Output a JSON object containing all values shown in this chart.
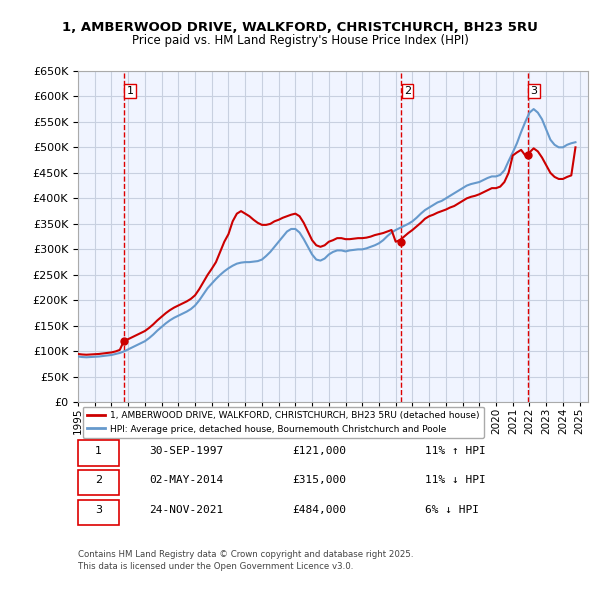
{
  "title_line1": "1, AMBERWOOD DRIVE, WALKFORD, CHRISTCHURCH, BH23 5RU",
  "title_line2": "Price paid vs. HM Land Registry's House Price Index (HPI)",
  "ylabel": "",
  "xlim_start": 1995.0,
  "xlim_end": 2025.5,
  "ylim_min": 0,
  "ylim_max": 650000,
  "ytick_step": 50000,
  "background_color": "#ffffff",
  "plot_bg_color": "#f0f4ff",
  "grid_color": "#c8d0e0",
  "red_color": "#cc0000",
  "blue_color": "#6699cc",
  "transaction_dates": [
    1997.75,
    2014.34,
    2021.9
  ],
  "transaction_prices": [
    121000,
    315000,
    484000
  ],
  "transaction_labels": [
    "1",
    "2",
    "3"
  ],
  "vline_color": "#dd0000",
  "legend_entries": [
    "1, AMBERWOOD DRIVE, WALKFORD, CHRISTCHURCH, BH23 5RU (detached house)",
    "HPI: Average price, detached house, Bournemouth Christchurch and Poole"
  ],
  "table_data": [
    [
      "1",
      "30-SEP-1997",
      "£121,000",
      "11% ↑ HPI"
    ],
    [
      "2",
      "02-MAY-2014",
      "£315,000",
      "11% ↓ HPI"
    ],
    [
      "3",
      "24-NOV-2021",
      "£484,000",
      "6% ↓ HPI"
    ]
  ],
  "footer_text": "Contains HM Land Registry data © Crown copyright and database right 2025.\nThis data is licensed under the Open Government Licence v3.0.",
  "hpi_data_x": [
    1995.0,
    1995.25,
    1995.5,
    1995.75,
    1996.0,
    1996.25,
    1996.5,
    1996.75,
    1997.0,
    1997.25,
    1997.5,
    1997.75,
    1998.0,
    1998.25,
    1998.5,
    1998.75,
    1999.0,
    1999.25,
    1999.5,
    1999.75,
    2000.0,
    2000.25,
    2000.5,
    2000.75,
    2001.0,
    2001.25,
    2001.5,
    2001.75,
    2002.0,
    2002.25,
    2002.5,
    2002.75,
    2003.0,
    2003.25,
    2003.5,
    2003.75,
    2004.0,
    2004.25,
    2004.5,
    2004.75,
    2005.0,
    2005.25,
    2005.5,
    2005.75,
    2006.0,
    2006.25,
    2006.5,
    2006.75,
    2007.0,
    2007.25,
    2007.5,
    2007.75,
    2008.0,
    2008.25,
    2008.5,
    2008.75,
    2009.0,
    2009.25,
    2009.5,
    2009.75,
    2010.0,
    2010.25,
    2010.5,
    2010.75,
    2011.0,
    2011.25,
    2011.5,
    2011.75,
    2012.0,
    2012.25,
    2012.5,
    2012.75,
    2013.0,
    2013.25,
    2013.5,
    2013.75,
    2014.0,
    2014.25,
    2014.5,
    2014.75,
    2015.0,
    2015.25,
    2015.5,
    2015.75,
    2016.0,
    2016.25,
    2016.5,
    2016.75,
    2017.0,
    2017.25,
    2017.5,
    2017.75,
    2018.0,
    2018.25,
    2018.5,
    2018.75,
    2019.0,
    2019.25,
    2019.5,
    2019.75,
    2020.0,
    2020.25,
    2020.5,
    2020.75,
    2021.0,
    2021.25,
    2021.5,
    2021.75,
    2022.0,
    2022.25,
    2022.5,
    2022.75,
    2023.0,
    2023.25,
    2023.5,
    2023.75,
    2024.0,
    2024.25,
    2024.5,
    2024.75
  ],
  "hpi_data_y": [
    90000,
    89000,
    88500,
    89000,
    89500,
    90000,
    91000,
    92000,
    93000,
    95000,
    97000,
    100000,
    104000,
    108000,
    112000,
    116000,
    120000,
    126000,
    133000,
    141000,
    148000,
    155000,
    161000,
    166000,
    170000,
    174000,
    178000,
    183000,
    190000,
    200000,
    212000,
    224000,
    233000,
    242000,
    250000,
    257000,
    263000,
    268000,
    272000,
    274000,
    275000,
    275000,
    276000,
    277000,
    280000,
    287000,
    295000,
    305000,
    315000,
    325000,
    335000,
    340000,
    340000,
    333000,
    320000,
    305000,
    290000,
    280000,
    278000,
    282000,
    290000,
    295000,
    298000,
    298000,
    296000,
    298000,
    299000,
    300000,
    300000,
    302000,
    305000,
    308000,
    312000,
    318000,
    326000,
    333000,
    338000,
    342000,
    346000,
    350000,
    355000,
    362000,
    370000,
    377000,
    382000,
    387000,
    392000,
    395000,
    400000,
    405000,
    410000,
    415000,
    420000,
    425000,
    428000,
    430000,
    432000,
    436000,
    440000,
    443000,
    443000,
    446000,
    455000,
    473000,
    490000,
    508000,
    530000,
    550000,
    568000,
    575000,
    568000,
    555000,
    535000,
    515000,
    505000,
    500000,
    500000,
    505000,
    508000,
    510000
  ],
  "red_line_x": [
    1995.0,
    1995.25,
    1995.5,
    1995.75,
    1996.0,
    1996.25,
    1996.5,
    1996.75,
    1997.0,
    1997.25,
    1997.5,
    1997.75,
    1998.0,
    1998.25,
    1998.5,
    1998.75,
    1999.0,
    1999.25,
    1999.5,
    1999.75,
    2000.0,
    2000.25,
    2000.5,
    2000.75,
    2001.0,
    2001.25,
    2001.5,
    2001.75,
    2002.0,
    2002.25,
    2002.5,
    2002.75,
    2003.0,
    2003.25,
    2003.5,
    2003.75,
    2004.0,
    2004.25,
    2004.5,
    2004.75,
    2005.0,
    2005.25,
    2005.5,
    2005.75,
    2006.0,
    2006.25,
    2006.5,
    2006.75,
    2007.0,
    2007.25,
    2007.5,
    2007.75,
    2008.0,
    2008.25,
    2008.5,
    2008.75,
    2009.0,
    2009.25,
    2009.5,
    2009.75,
    2010.0,
    2010.25,
    2010.5,
    2010.75,
    2011.0,
    2011.25,
    2011.5,
    2011.75,
    2012.0,
    2012.25,
    2012.5,
    2012.75,
    2013.0,
    2013.25,
    2013.5,
    2013.75,
    2014.0,
    2014.25,
    2014.5,
    2014.75,
    2015.0,
    2015.25,
    2015.5,
    2015.75,
    2016.0,
    2016.25,
    2016.5,
    2016.75,
    2017.0,
    2017.25,
    2017.5,
    2017.75,
    2018.0,
    2018.25,
    2018.5,
    2018.75,
    2019.0,
    2019.25,
    2019.5,
    2019.75,
    2020.0,
    2020.25,
    2020.5,
    2020.75,
    2021.0,
    2021.25,
    2021.5,
    2021.75,
    2022.0,
    2022.25,
    2022.5,
    2022.75,
    2023.0,
    2023.25,
    2023.5,
    2023.75,
    2024.0,
    2024.25,
    2024.5,
    2024.75
  ],
  "red_line_y": [
    95000,
    94000,
    93500,
    94000,
    94500,
    95000,
    96000,
    97000,
    98000,
    100000,
    103000,
    121000,
    124000,
    128000,
    132000,
    136000,
    140000,
    146000,
    153000,
    161000,
    168000,
    175000,
    181000,
    186000,
    190000,
    194000,
    198000,
    203000,
    210000,
    222000,
    236000,
    250000,
    262000,
    275000,
    295000,
    315000,
    330000,
    355000,
    370000,
    375000,
    370000,
    365000,
    358000,
    352000,
    348000,
    348000,
    350000,
    355000,
    358000,
    362000,
    365000,
    368000,
    370000,
    365000,
    352000,
    335000,
    318000,
    308000,
    305000,
    308000,
    315000,
    318000,
    322000,
    322000,
    320000,
    320000,
    321000,
    322000,
    322000,
    323000,
    325000,
    328000,
    330000,
    332000,
    335000,
    338000,
    315000,
    318000,
    325000,
    332000,
    338000,
    345000,
    352000,
    360000,
    365000,
    368000,
    372000,
    375000,
    378000,
    382000,
    385000,
    390000,
    395000,
    400000,
    403000,
    405000,
    408000,
    412000,
    416000,
    420000,
    420000,
    423000,
    432000,
    450000,
    484000,
    490000,
    495000,
    484000,
    490000,
    498000,
    492000,
    480000,
    465000,
    450000,
    442000,
    438000,
    438000,
    442000,
    445000,
    500000
  ]
}
